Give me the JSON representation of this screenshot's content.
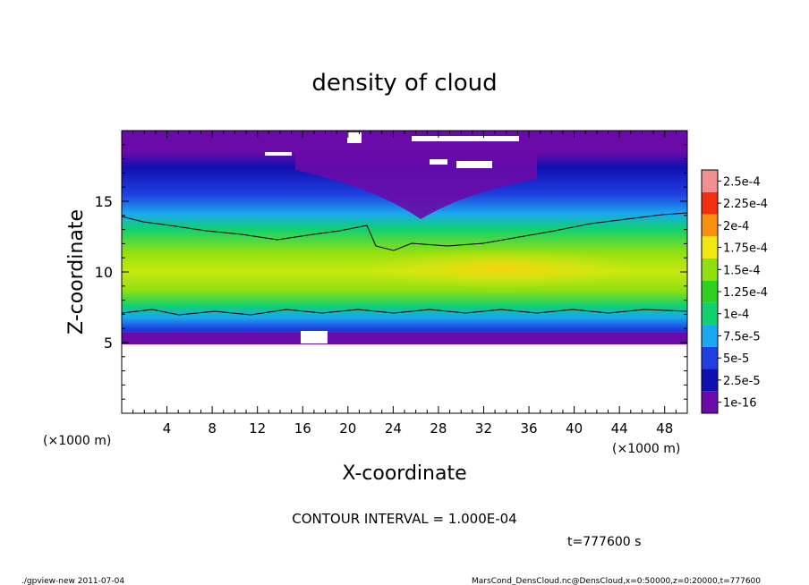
{
  "chart_data": {
    "type": "heatmap",
    "title": "density of cloud",
    "xlabel": "X-coordinate",
    "ylabel": "Z-coordinate",
    "x_unit_left": "(×1000 m)",
    "x_unit_right": "(×1000 m)",
    "xlim": [
      0,
      50
    ],
    "ylim": [
      0,
      20
    ],
    "xticks": [
      4,
      8,
      12,
      16,
      20,
      24,
      28,
      32,
      36,
      40,
      44,
      48
    ],
    "yticks": [
      5,
      10,
      15
    ],
    "contour_interval_text": "CONTOUR INTERVAL = 1.000E-04",
    "time_text": "t=777600 s",
    "colorbar": {
      "labels": [
        "1e-16",
        "2.5e-5",
        "5e-5",
        "7.5e-5",
        "1e-4",
        "1.25e-4",
        "1.5e-4",
        "1.75e-4",
        "2e-4",
        "2.25e-4",
        "2.5e-4"
      ],
      "colors": [
        "#6a0aa8",
        "#1010b0",
        "#1f3fe0",
        "#1aa8f0",
        "#10d070",
        "#30d020",
        "#90e010",
        "#f0e810",
        "#f89010",
        "#f03010",
        "#f09090"
      ]
    },
    "cloud_profile": [
      {
        "z": 5,
        "density": 1e-16
      },
      {
        "z": 6,
        "density": 5e-05
      },
      {
        "z": 7,
        "density": 0.0001
      },
      {
        "z": 9,
        "density": 0.00015
      },
      {
        "z": 10.5,
        "density": 0.00016
      },
      {
        "z": 12,
        "density": 0.00011
      },
      {
        "z": 14,
        "density": 5e-05
      },
      {
        "z": 16,
        "density": 2.5e-05
      },
      {
        "z": 18,
        "density": 1e-16
      }
    ]
  },
  "footer": {
    "left": "./gpview-new   2011-07-04",
    "right": "MarsCond_DensCloud.nc@DensCloud,x=0:50000,z=0:20000,t=777600"
  }
}
